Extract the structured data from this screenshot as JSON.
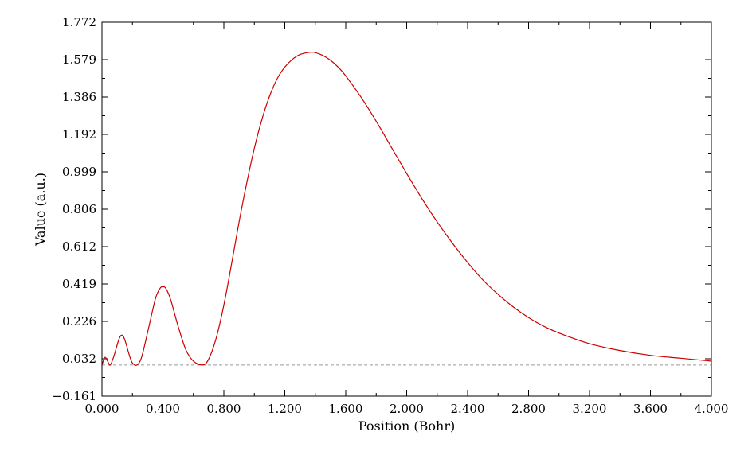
{
  "chart_data": {
    "type": "line",
    "title": "",
    "xlabel": "Position (Bohr)",
    "ylabel": "Value (a.u.)",
    "xlim": [
      0.0,
      4.0
    ],
    "ylim": [
      -0.161,
      1.772
    ],
    "xticks": [
      "0.000",
      "0.400",
      "0.800",
      "1.200",
      "1.600",
      "2.000",
      "2.400",
      "2.800",
      "3.200",
      "3.600",
      "4.000"
    ],
    "yticks": [
      "-0.161",
      "0.032",
      "0.226",
      "0.419",
      "0.612",
      "0.806",
      "0.999",
      "1.192",
      "1.386",
      "1.579",
      "1.772"
    ],
    "baseline_y": 0.0,
    "grid": false,
    "legend": "none",
    "series": [
      {
        "color": "#cc0000",
        "points": [
          [
            0.0,
            0.0
          ],
          [
            0.02,
            0.04
          ],
          [
            0.04,
            0.015
          ],
          [
            0.055,
            0.0
          ],
          [
            0.08,
            0.05
          ],
          [
            0.11,
            0.13
          ],
          [
            0.13,
            0.155
          ],
          [
            0.15,
            0.13
          ],
          [
            0.18,
            0.05
          ],
          [
            0.2,
            0.01
          ],
          [
            0.23,
            0.0
          ],
          [
            0.26,
            0.04
          ],
          [
            0.3,
            0.17
          ],
          [
            0.35,
            0.34
          ],
          [
            0.38,
            0.395
          ],
          [
            0.4,
            0.405
          ],
          [
            0.42,
            0.395
          ],
          [
            0.45,
            0.34
          ],
          [
            0.5,
            0.2
          ],
          [
            0.55,
            0.08
          ],
          [
            0.6,
            0.02
          ],
          [
            0.66,
            0.0
          ],
          [
            0.7,
            0.03
          ],
          [
            0.75,
            0.14
          ],
          [
            0.8,
            0.31
          ],
          [
            0.85,
            0.52
          ],
          [
            0.9,
            0.74
          ],
          [
            0.95,
            0.94
          ],
          [
            1.0,
            1.12
          ],
          [
            1.05,
            1.27
          ],
          [
            1.1,
            1.39
          ],
          [
            1.15,
            1.48
          ],
          [
            1.2,
            1.54
          ],
          [
            1.25,
            1.58
          ],
          [
            1.3,
            1.605
          ],
          [
            1.35,
            1.615
          ],
          [
            1.38,
            1.617
          ],
          [
            1.4,
            1.615
          ],
          [
            1.45,
            1.6
          ],
          [
            1.5,
            1.575
          ],
          [
            1.55,
            1.54
          ],
          [
            1.6,
            1.495
          ],
          [
            1.7,
            1.385
          ],
          [
            1.8,
            1.26
          ],
          [
            1.9,
            1.125
          ],
          [
            2.0,
            0.99
          ],
          [
            2.1,
            0.86
          ],
          [
            2.2,
            0.74
          ],
          [
            2.3,
            0.63
          ],
          [
            2.4,
            0.53
          ],
          [
            2.5,
            0.44
          ],
          [
            2.6,
            0.365
          ],
          [
            2.7,
            0.3
          ],
          [
            2.8,
            0.245
          ],
          [
            2.9,
            0.2
          ],
          [
            3.0,
            0.165
          ],
          [
            3.2,
            0.11
          ],
          [
            3.4,
            0.075
          ],
          [
            3.6,
            0.05
          ],
          [
            3.8,
            0.035
          ],
          [
            4.0,
            0.02
          ]
        ]
      }
    ]
  }
}
